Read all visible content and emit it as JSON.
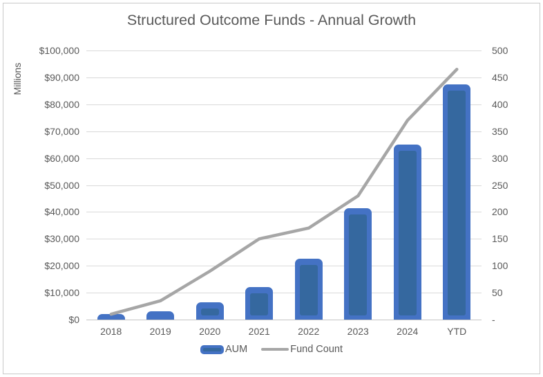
{
  "chart_data": {
    "type": "bar",
    "title": "Structured Outcome Funds - Annual Growth",
    "categories": [
      "2018",
      "2019",
      "2020",
      "2021",
      "2022",
      "2023",
      "2024",
      "YTD"
    ],
    "series": [
      {
        "name": "AUM",
        "type": "bar",
        "axis": "left",
        "values": [
          2000,
          3000,
          6400,
          12000,
          22500,
          41500,
          65000,
          87500
        ]
      },
      {
        "name": "Fund Count",
        "type": "line",
        "axis": "right",
        "values": [
          10,
          35,
          90,
          150,
          170,
          230,
          370,
          465
        ]
      }
    ],
    "left_axis": {
      "label": "Millions",
      "min": 0,
      "max": 100000,
      "ticks_top_to_bottom": [
        "$100,000",
        "$90,000",
        "$80,000",
        "$70,000",
        "$60,000",
        "$50,000",
        "$40,000",
        "$30,000",
        "$20,000",
        "$10,000",
        "$0"
      ]
    },
    "right_axis": {
      "min": 0,
      "max": 500,
      "ticks_top_to_bottom": [
        "500",
        "450",
        "400",
        "350",
        "300",
        "250",
        "200",
        "150",
        "100",
        "50",
        "-"
      ]
    },
    "legend_position": "bottom",
    "grid": true
  },
  "colors": {
    "bar_fill": "#4472C4",
    "bar_inner": "#35689F",
    "line": "#A6A6A6",
    "grid": "#D9D9D9",
    "axis_line": "#C3C3C3",
    "text": "#595959",
    "background": "#FFFFFF",
    "border": "#C9C9C9"
  }
}
